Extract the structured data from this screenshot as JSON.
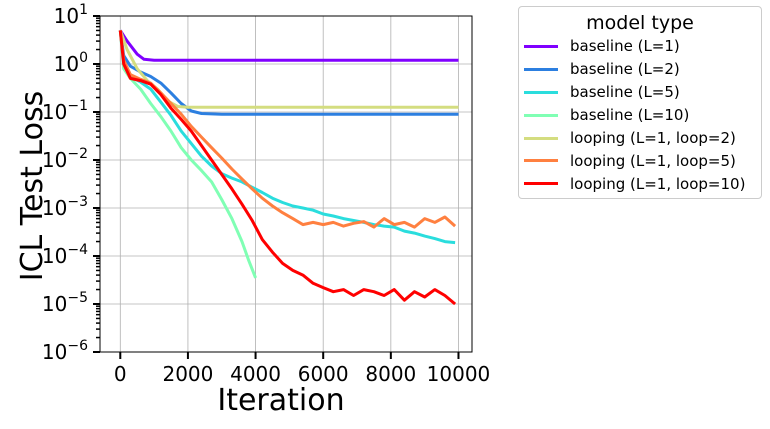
{
  "chart_data": {
    "type": "line",
    "title": "",
    "xlabel": "Iteration",
    "ylabel": "ICL Test Loss",
    "xlim": [
      -600,
      10400
    ],
    "ylim": [
      1e-06,
      10
    ],
    "yscale": "log",
    "grid": true,
    "xticks": [
      0,
      2000,
      4000,
      6000,
      8000,
      10000
    ],
    "xtick_labels": [
      "0",
      "2000",
      "4000",
      "6000",
      "8000",
      "10000"
    ],
    "yticks": [
      1e-06,
      1e-05,
      0.0001,
      0.001,
      0.01,
      0.1,
      1,
      10
    ],
    "ytick_labels": [
      {
        "base": "10",
        "exp": "−6"
      },
      {
        "base": "10",
        "exp": "−5"
      },
      {
        "base": "10",
        "exp": "−4"
      },
      {
        "base": "10",
        "exp": "−3"
      },
      {
        "base": "10",
        "exp": "−2"
      },
      {
        "base": "10",
        "exp": "−1"
      },
      {
        "base": "10",
        "exp": "0"
      },
      {
        "base": "10",
        "exp": "1"
      }
    ],
    "legend": {
      "title": "model type",
      "placement": "outside-right-top"
    },
    "series": [
      {
        "name": "baseline (L=1)",
        "color": "#8000ff",
        "points": [
          [
            0,
            5
          ],
          [
            200,
            3
          ],
          [
            500,
            1.6
          ],
          [
            700,
            1.25
          ],
          [
            1000,
            1.2
          ],
          [
            2000,
            1.2
          ],
          [
            4000,
            1.2
          ],
          [
            6000,
            1.2
          ],
          [
            8000,
            1.2
          ],
          [
            10000,
            1.2
          ]
        ]
      },
      {
        "name": "baseline (L=2)",
        "color": "#2c7fe0",
        "points": [
          [
            0,
            5
          ],
          [
            100,
            1.5
          ],
          [
            300,
            0.9
          ],
          [
            600,
            0.68
          ],
          [
            900,
            0.55
          ],
          [
            1200,
            0.4
          ],
          [
            1500,
            0.25
          ],
          [
            1800,
            0.15
          ],
          [
            2100,
            0.105
          ],
          [
            2400,
            0.093
          ],
          [
            3000,
            0.09
          ],
          [
            5000,
            0.09
          ],
          [
            7000,
            0.09
          ],
          [
            10000,
            0.09
          ]
        ]
      },
      {
        "name": "baseline (L=5)",
        "color": "#2adddd",
        "points": [
          [
            0,
            5
          ],
          [
            100,
            0.9
          ],
          [
            300,
            0.55
          ],
          [
            600,
            0.42
          ],
          [
            900,
            0.3
          ],
          [
            1200,
            0.16
          ],
          [
            1500,
            0.085
          ],
          [
            1800,
            0.04
          ],
          [
            2100,
            0.022
          ],
          [
            2400,
            0.012
          ],
          [
            2700,
            0.0075
          ],
          [
            3000,
            0.0052
          ],
          [
            3300,
            0.0042
          ],
          [
            3600,
            0.0035
          ],
          [
            3900,
            0.0027
          ],
          [
            4200,
            0.0021
          ],
          [
            4500,
            0.0016
          ],
          [
            4800,
            0.0013
          ],
          [
            5100,
            0.0011
          ],
          [
            5400,
            0.001
          ],
          [
            5700,
            0.0009
          ],
          [
            6000,
            0.00075
          ],
          [
            6300,
            0.00068
          ],
          [
            6600,
            0.0006
          ],
          [
            6900,
            0.00055
          ],
          [
            7200,
            0.0005
          ],
          [
            7500,
            0.00045
          ],
          [
            7800,
            0.00042
          ],
          [
            8100,
            0.0004
          ],
          [
            8400,
            0.00033
          ],
          [
            8700,
            0.0003
          ],
          [
            9000,
            0.00026
          ],
          [
            9300,
            0.00023
          ],
          [
            9600,
            0.0002
          ],
          [
            9900,
            0.00019
          ]
        ]
      },
      {
        "name": "baseline (L=10)",
        "color": "#80ffb4",
        "points": [
          [
            0,
            5
          ],
          [
            100,
            0.8
          ],
          [
            300,
            0.5
          ],
          [
            600,
            0.3
          ],
          [
            900,
            0.15
          ],
          [
            1200,
            0.08
          ],
          [
            1500,
            0.04
          ],
          [
            1800,
            0.018
          ],
          [
            2100,
            0.01
          ],
          [
            2400,
            0.006
          ],
          [
            2700,
            0.0035
          ],
          [
            3000,
            0.0015
          ],
          [
            3300,
            0.0006
          ],
          [
            3600,
            0.0002
          ],
          [
            3800,
            8e-05
          ],
          [
            4000,
            3.5e-05
          ]
        ]
      },
      {
        "name": "looping (L=1, loop=2)",
        "color": "#d4dd80",
        "points": [
          [
            0,
            5
          ],
          [
            200,
            2
          ],
          [
            500,
            0.8
          ],
          [
            800,
            0.45
          ],
          [
            1100,
            0.3
          ],
          [
            1400,
            0.17
          ],
          [
            1700,
            0.13
          ],
          [
            2000,
            0.125
          ],
          [
            3000,
            0.125
          ],
          [
            5000,
            0.125
          ],
          [
            7000,
            0.125
          ],
          [
            10000,
            0.125
          ]
        ]
      },
      {
        "name": "looping (L=1, loop=5)",
        "color": "#ff8040",
        "points": [
          [
            0,
            5
          ],
          [
            100,
            1.2
          ],
          [
            300,
            0.6
          ],
          [
            600,
            0.48
          ],
          [
            900,
            0.4
          ],
          [
            1200,
            0.25
          ],
          [
            1500,
            0.15
          ],
          [
            1800,
            0.09
          ],
          [
            2100,
            0.05
          ],
          [
            2400,
            0.03
          ],
          [
            2700,
            0.018
          ],
          [
            3000,
            0.011
          ],
          [
            3300,
            0.0065
          ],
          [
            3600,
            0.004
          ],
          [
            3900,
            0.0025
          ],
          [
            4200,
            0.0016
          ],
          [
            4500,
            0.0011
          ],
          [
            4800,
            0.0008
          ],
          [
            5100,
            0.0006
          ],
          [
            5400,
            0.00045
          ],
          [
            5700,
            0.0005
          ],
          [
            6000,
            0.00045
          ],
          [
            6300,
            0.0005
          ],
          [
            6600,
            0.00042
          ],
          [
            6900,
            0.00048
          ],
          [
            7200,
            0.00052
          ],
          [
            7500,
            0.0004
          ],
          [
            7800,
            0.0006
          ],
          [
            8100,
            0.00045
          ],
          [
            8400,
            0.0005
          ],
          [
            8700,
            0.0004
          ],
          [
            9000,
            0.0006
          ],
          [
            9300,
            0.0005
          ],
          [
            9600,
            0.00065
          ],
          [
            9900,
            0.00042
          ]
        ]
      },
      {
        "name": "looping (L=1, loop=10)",
        "color": "#ff0000",
        "points": [
          [
            0,
            5
          ],
          [
            100,
            1.0
          ],
          [
            300,
            0.5
          ],
          [
            600,
            0.45
          ],
          [
            900,
            0.38
          ],
          [
            1200,
            0.23
          ],
          [
            1500,
            0.12
          ],
          [
            1800,
            0.07
          ],
          [
            2100,
            0.04
          ],
          [
            2400,
            0.02
          ],
          [
            2700,
            0.01
          ],
          [
            3000,
            0.005
          ],
          [
            3300,
            0.0025
          ],
          [
            3600,
            0.0012
          ],
          [
            3900,
            0.00055
          ],
          [
            4200,
            0.00022
          ],
          [
            4500,
            0.00012
          ],
          [
            4800,
            7e-05
          ],
          [
            5100,
            5e-05
          ],
          [
            5400,
            4e-05
          ],
          [
            5700,
            2.7e-05
          ],
          [
            6000,
            2.2e-05
          ],
          [
            6300,
            1.8e-05
          ],
          [
            6600,
            2e-05
          ],
          [
            6900,
            1.5e-05
          ],
          [
            7200,
            2e-05
          ],
          [
            7500,
            1.8e-05
          ],
          [
            7800,
            1.5e-05
          ],
          [
            8100,
            2e-05
          ],
          [
            8400,
            1.2e-05
          ],
          [
            8700,
            1.8e-05
          ],
          [
            9000,
            1.4e-05
          ],
          [
            9300,
            2e-05
          ],
          [
            9600,
            1.5e-05
          ],
          [
            9900,
            1e-05
          ]
        ]
      }
    ]
  }
}
